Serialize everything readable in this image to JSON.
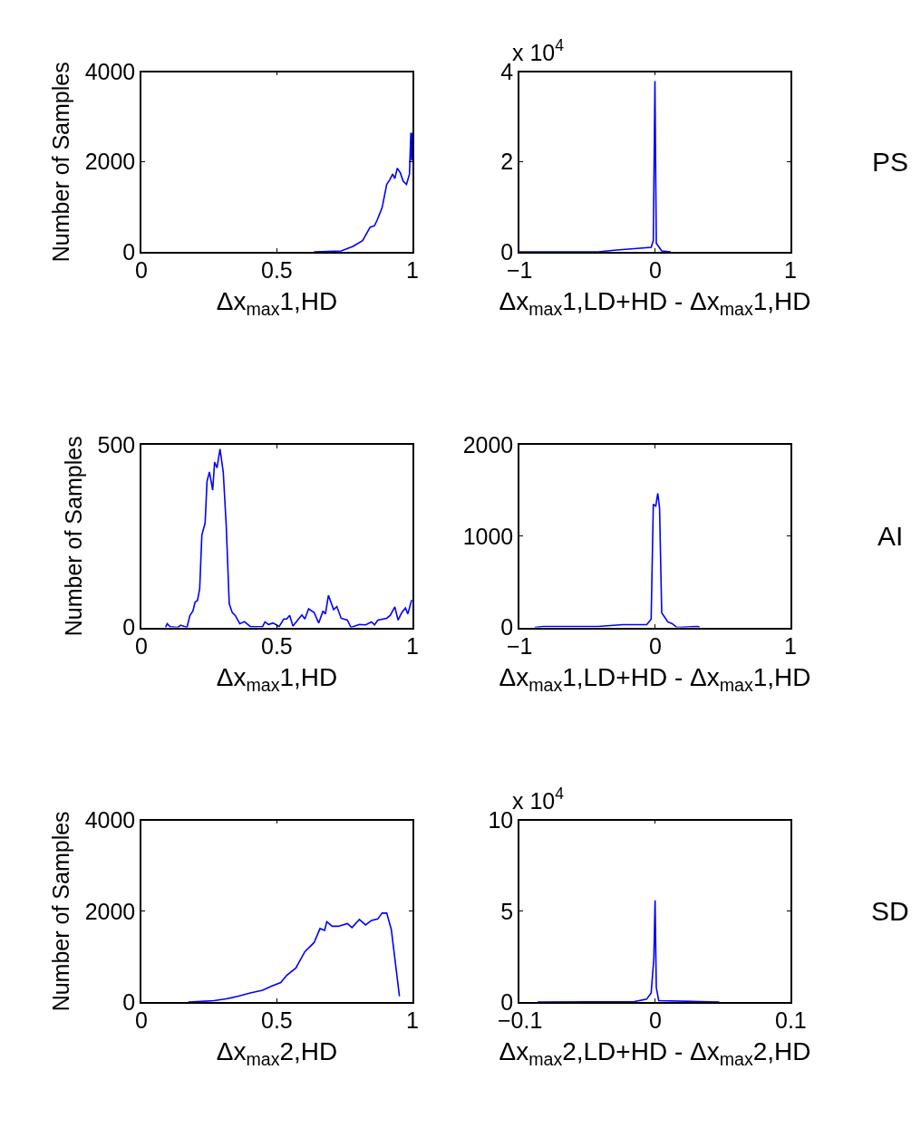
{
  "chart_data": [
    {
      "type": "line",
      "ylabel": "Number of Samples",
      "xlabel": "Δx$_{max}$1,HD",
      "xlim": [
        0,
        1
      ],
      "xticks": [
        0,
        0.5,
        1
      ],
      "ylim": [
        0,
        4000
      ],
      "yticks": [
        0,
        2000,
        4000
      ],
      "x": [
        0.637,
        0.737,
        0.78,
        0.816,
        0.844,
        0.86,
        0.87,
        0.888,
        0.905,
        0.916,
        0.927,
        0.935,
        0.944,
        0.955,
        0.966,
        0.978,
        0.989,
        0.994,
        0.997,
        1
      ],
      "series": [
        {
          "color": "#0000ff",
          "values": [
            0,
            20,
            120,
            250,
            550,
            580,
            710,
            980,
            1500,
            1600,
            1730,
            1630,
            1860,
            1760,
            1570,
            1500,
            1730,
            2650,
            2030,
            2650
          ]
        }
      ]
    },
    {
      "type": "line",
      "xlabel": "Δx$_{max}$1,LD+HD - Δx$_{max}$1,HD",
      "xlim": [
        -1,
        1
      ],
      "xticks": [
        -1,
        0,
        1
      ],
      "ylim": [
        0,
        4
      ],
      "yticks": [
        0,
        2,
        4
      ],
      "annotations": [
        "x 10$^{4}$",
        "PS"
      ],
      "x": [
        -1,
        -0.419,
        -0.285,
        -0.028,
        -0.012,
        0,
        0.01,
        0.05,
        0.117
      ],
      "series": [
        {
          "color": "#0000ff",
          "values": [
            0,
            0,
            0.04,
            0.1,
            0.25,
            3.8,
            0.19,
            0.02,
            0
          ]
        }
      ]
    },
    {
      "type": "line",
      "ylabel": "Number of Samples",
      "xlabel": "Δx$_{max}$1,HD",
      "xlim": [
        0,
        1
      ],
      "xticks": [
        0,
        0.5,
        1
      ],
      "ylim": [
        0,
        500
      ],
      "yticks": [
        0,
        500
      ],
      "x": [
        0.089,
        0.095,
        0.106,
        0.134,
        0.145,
        0.168,
        0.179,
        0.19,
        0.198,
        0.207,
        0.215,
        0.223,
        0.235,
        0.242,
        0.251,
        0.263,
        0.27,
        0.279,
        0.29,
        0.302,
        0.313,
        0.324,
        0.335,
        0.346,
        0.363,
        0.38,
        0.402,
        0.447,
        0.456,
        0.469,
        0.486,
        0.508,
        0.525,
        0.536,
        0.547,
        0.559,
        0.592,
        0.603,
        0.617,
        0.637,
        0.654,
        0.67,
        0.679,
        0.69,
        0.709,
        0.721,
        0.737,
        0.76,
        0.773,
        0.804,
        0.827,
        0.849,
        0.86,
        0.872,
        0.905,
        0.918,
        0.935,
        0.947,
        0.961,
        0.974,
        0.983,
        0.997
      ],
      "series": [
        {
          "color": "#0000ff",
          "values": [
            0,
            10,
            2,
            0,
            6,
            0,
            33,
            45,
            69,
            74,
            106,
            253,
            286,
            400,
            426,
            376,
            453,
            437,
            489,
            425,
            278,
            65,
            41,
            33,
            10,
            16,
            2,
            2,
            15,
            8,
            12,
            2,
            23,
            23,
            33,
            4,
            34,
            23,
            51,
            41,
            12,
            45,
            37,
            88,
            49,
            57,
            25,
            20,
            0,
            8,
            7,
            15,
            7,
            20,
            25,
            33,
            56,
            20,
            41,
            53,
            37,
            75
          ]
        }
      ]
    },
    {
      "type": "line",
      "xlabel": "Δx$_{max}$1,LD+HD - Δx$_{max}$1,HD",
      "xlim": [
        -1,
        1
      ],
      "xticks": [
        -1,
        0,
        1
      ],
      "ylim": [
        0,
        2000
      ],
      "yticks": [
        0,
        1000,
        2000
      ],
      "annotations": [
        "AI"
      ],
      "x": [
        -0.888,
        -0.821,
        -0.732,
        -0.419,
        -0.24,
        -0.061,
        -0.028,
        -0.012,
        0.006,
        0.021,
        0.034,
        0.05,
        0.095,
        0.128,
        0.162,
        0.318,
        0.33
      ],
      "series": [
        {
          "color": "#0000ff",
          "values": [
            0,
            10,
            10,
            10,
            30,
            30,
            90,
            1350,
            1330,
            1470,
            1310,
            160,
            60,
            40,
            0,
            10,
            0
          ]
        }
      ]
    },
    {
      "type": "line",
      "ylabel": "Number of Samples",
      "xlabel": "Δx$_{max}$2,HD",
      "xlim": [
        0,
        1
      ],
      "xticks": [
        0,
        0.5,
        1
      ],
      "ylim": [
        0,
        4000
      ],
      "yticks": [
        0,
        2000,
        4000
      ],
      "x": [
        0.173,
        0.268,
        0.313,
        0.358,
        0.402,
        0.447,
        0.48,
        0.514,
        0.536,
        0.57,
        0.603,
        0.637,
        0.659,
        0.676,
        0.684,
        0.704,
        0.726,
        0.76,
        0.777,
        0.804,
        0.827,
        0.849,
        0.872,
        0.888,
        0.905,
        0.922,
        0.952
      ],
      "series": [
        {
          "color": "#0000ff",
          "values": [
            0,
            30,
            70,
            130,
            200,
            260,
            350,
            430,
            590,
            750,
            1110,
            1310,
            1620,
            1580,
            1770,
            1670,
            1670,
            1730,
            1640,
            1820,
            1700,
            1800,
            1830,
            1960,
            1960,
            1600,
            130
          ]
        }
      ]
    },
    {
      "type": "line",
      "xlabel": "Δx$_{max}$2,LD+HD - Δx$_{max}$2,HD",
      "xlim": [
        -0.1,
        0.1
      ],
      "xticks": [
        -0.1,
        0,
        0.1
      ],
      "ylim": [
        0,
        10
      ],
      "yticks": [
        0,
        5,
        10
      ],
      "annotations": [
        "x 10$^{4}$",
        "SD"
      ],
      "x": [
        -0.0866,
        -0.0151,
        -0.0061,
        -0.0028,
        -0.0008,
        0.0001,
        0.001,
        0.0028,
        0.0475
      ],
      "series": [
        {
          "color": "#0000ff",
          "values": [
            0,
            0.03,
            0.16,
            0.5,
            2.4,
            5.6,
            0.8,
            0.08,
            0
          ]
        }
      ]
    }
  ]
}
